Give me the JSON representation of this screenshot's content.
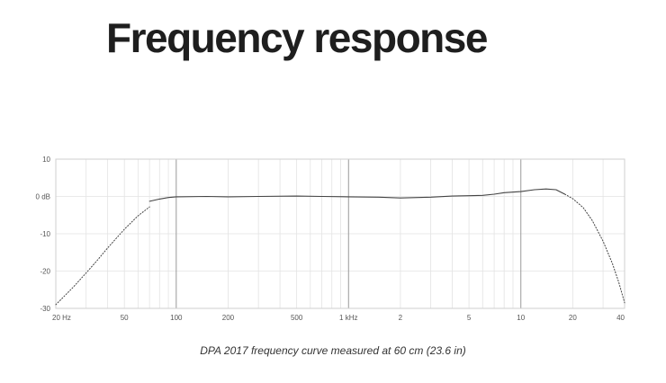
{
  "page": {
    "title": "Frequency response",
    "caption": "DPA 2017 frequency curve measured at 60 cm (23.6 in)"
  },
  "chart_data": {
    "type": "line",
    "title": "Frequency response",
    "xlabel": "",
    "ylabel": "",
    "x_scale": "log",
    "xlim": [
      20,
      40000
    ],
    "ylim": [
      -30,
      10
    ],
    "grid": true,
    "x_ticks": [
      {
        "value": 20,
        "label": "20 Hz"
      },
      {
        "value": 50,
        "label": "50"
      },
      {
        "value": 100,
        "label": "100"
      },
      {
        "value": 200,
        "label": "200"
      },
      {
        "value": 500,
        "label": "500"
      },
      {
        "value": 1000,
        "label": "1 kHz"
      },
      {
        "value": 2000,
        "label": "2"
      },
      {
        "value": 5000,
        "label": "5"
      },
      {
        "value": 10000,
        "label": "10"
      },
      {
        "value": 20000,
        "label": "20"
      },
      {
        "value": 40000,
        "label": "40"
      }
    ],
    "major_x": [
      100,
      1000,
      10000
    ],
    "y_ticks": [
      {
        "value": 10,
        "label": "10"
      },
      {
        "value": 0,
        "label": "0 dB"
      },
      {
        "value": -10,
        "label": "-10"
      },
      {
        "value": -20,
        "label": "-20"
      },
      {
        "value": -30,
        "label": "-30"
      }
    ],
    "colors": {
      "curve": "#444444",
      "grid_minor": "#e3e3e3",
      "grid_major": "#9a9a9a",
      "frame": "#cfcfcf"
    },
    "series": [
      {
        "style": "dotted",
        "x": [
          20,
          25,
          30,
          35,
          40,
          50,
          60,
          70
        ],
        "y": [
          -29.0,
          -24.5,
          -20.5,
          -17.0,
          -13.8,
          -8.8,
          -5.2,
          -2.8
        ]
      },
      {
        "style": "solid",
        "x": [
          70,
          80,
          90,
          100,
          150,
          200,
          300,
          500,
          700,
          1000,
          1500,
          2000,
          3000,
          4000,
          5000,
          6000,
          7000,
          8000,
          10000,
          12000,
          14000,
          16000,
          18000
        ],
        "y": [
          -1.3,
          -0.7,
          -0.3,
          -0.1,
          0.0,
          -0.1,
          0.0,
          0.1,
          0.0,
          -0.1,
          -0.2,
          -0.4,
          -0.2,
          0.1,
          0.2,
          0.3,
          0.6,
          1.0,
          1.3,
          1.8,
          2.0,
          1.8,
          0.6
        ]
      },
      {
        "style": "dotted",
        "x": [
          18000,
          20000,
          23000,
          26000,
          30000,
          34000,
          37000,
          40000
        ],
        "y": [
          0.6,
          -0.6,
          -3.0,
          -6.5,
          -12.0,
          -18.0,
          -23.0,
          -28.5
        ]
      }
    ]
  }
}
